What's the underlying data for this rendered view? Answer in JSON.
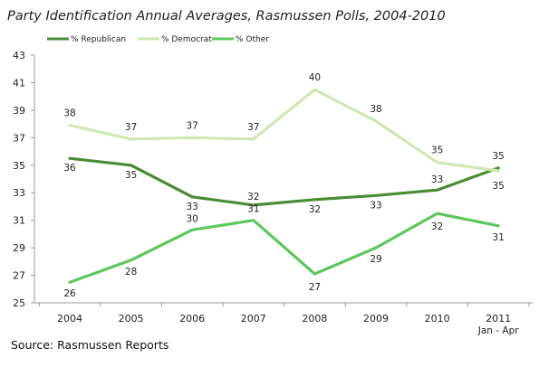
{
  "chart_data": {
    "type": "line",
    "title": "Party Identification Annual Averages, Rasmussen Polls, 2004-2010",
    "categories": [
      "2004",
      "2005",
      "2006",
      "2007",
      "2008",
      "2009",
      "2010",
      "2011"
    ],
    "category_sublabels": [
      "",
      "",
      "",
      "",
      "",
      "",
      "",
      "Jan - Apr"
    ],
    "series": [
      {
        "name": "% Republican",
        "color": "#4a8c35",
        "values": [
          35.5,
          35.0,
          32.7,
          32.1,
          32.5,
          32.8,
          33.2,
          34.8
        ],
        "labels": [
          "36",
          "35",
          "33",
          "32",
          "32",
          "33",
          "33",
          "35"
        ]
      },
      {
        "name": "% Democrat",
        "color": "#cfe8b0",
        "values": [
          37.9,
          36.9,
          37.0,
          36.9,
          40.5,
          38.2,
          35.2,
          34.6
        ],
        "labels": [
          "38",
          "37",
          "37",
          "37",
          "40",
          "38",
          "35",
          "35"
        ]
      },
      {
        "name": "% Other",
        "color": "#5cc85c",
        "values": [
          26.5,
          28.1,
          30.3,
          31.0,
          27.1,
          29.0,
          31.5,
          30.6
        ],
        "labels": [
          "26",
          "28",
          "30",
          "31",
          "27",
          "29",
          "32",
          "31"
        ]
      }
    ],
    "y_ticks": [
      "25",
      "27",
      "29",
      "31",
      "33",
      "35",
      "37",
      "39",
      "41",
      "43"
    ],
    "ylim": [
      25,
      43
    ],
    "legend_position": "top-left",
    "grid": false
  },
  "source_text": "Source:   Rasmussen  Reports"
}
